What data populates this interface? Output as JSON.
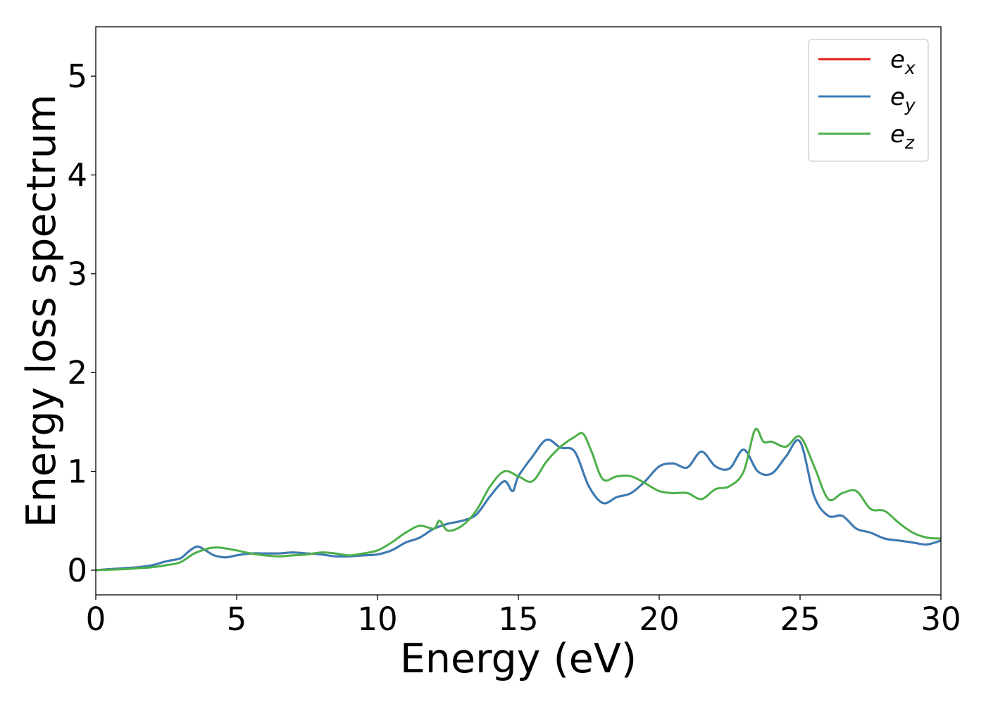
{
  "chart_data": {
    "type": "line",
    "title": "",
    "xlabel": "Energy (eV)",
    "ylabel": "Energy loss spectrum",
    "xlim": [
      0,
      30
    ],
    "ylim": [
      -0.25,
      5.5
    ],
    "xticks": [
      0,
      5,
      10,
      15,
      20,
      25,
      30
    ],
    "yticks": [
      0,
      1,
      2,
      3,
      4,
      5
    ],
    "grid": false,
    "legend_position": "top-right",
    "series": [
      {
        "name": "e",
        "subscript": "x",
        "color": "#e41a1c",
        "note_hidden_under": "e_y",
        "x": [
          0,
          1,
          1.5,
          2,
          2.5,
          3,
          3.3,
          3.6,
          3.9,
          4.2,
          4.6,
          5,
          5.5,
          6,
          6.5,
          7,
          7.5,
          8,
          8.5,
          9,
          9.5,
          10,
          10.5,
          11,
          11.5,
          12,
          12.5,
          13,
          13.5,
          14,
          14.5,
          14.8,
          15,
          15.5,
          16,
          16.5,
          17,
          17.5,
          18,
          18.5,
          19,
          19.5,
          20,
          20.5,
          21,
          21.5,
          22,
          22.5,
          23,
          23.5,
          24,
          24.5,
          25,
          25.5,
          26,
          26.5,
          27,
          27.5,
          28,
          28.5,
          29,
          29.5,
          30
        ],
        "y": [
          0,
          0.02,
          0.03,
          0.05,
          0.09,
          0.12,
          0.19,
          0.24,
          0.2,
          0.15,
          0.13,
          0.15,
          0.17,
          0.17,
          0.17,
          0.18,
          0.17,
          0.16,
          0.14,
          0.14,
          0.15,
          0.16,
          0.2,
          0.28,
          0.33,
          0.42,
          0.47,
          0.5,
          0.56,
          0.75,
          0.9,
          0.8,
          0.95,
          1.15,
          1.32,
          1.24,
          1.2,
          0.85,
          0.68,
          0.74,
          0.78,
          0.9,
          1.05,
          1.08,
          1.04,
          1.2,
          1.05,
          1.03,
          1.22,
          1.0,
          0.98,
          1.15,
          1.3,
          0.75,
          0.55,
          0.55,
          0.42,
          0.38,
          0.32,
          0.3,
          0.28,
          0.26,
          0.3
        ]
      },
      {
        "name": "e",
        "subscript": "y",
        "color": "#377eb8",
        "x": [
          0,
          1,
          1.5,
          2,
          2.5,
          3,
          3.3,
          3.6,
          3.9,
          4.2,
          4.6,
          5,
          5.5,
          6,
          6.5,
          7,
          7.5,
          8,
          8.5,
          9,
          9.5,
          10,
          10.5,
          11,
          11.5,
          12,
          12.5,
          13,
          13.5,
          14,
          14.5,
          14.8,
          15,
          15.5,
          16,
          16.5,
          17,
          17.5,
          18,
          18.5,
          19,
          19.5,
          20,
          20.5,
          21,
          21.5,
          22,
          22.5,
          23,
          23.5,
          24,
          24.5,
          25,
          25.5,
          26,
          26.5,
          27,
          27.5,
          28,
          28.5,
          29,
          29.5,
          30
        ],
        "y": [
          0,
          0.02,
          0.03,
          0.05,
          0.09,
          0.12,
          0.19,
          0.24,
          0.2,
          0.15,
          0.13,
          0.15,
          0.17,
          0.17,
          0.17,
          0.18,
          0.17,
          0.16,
          0.14,
          0.14,
          0.15,
          0.16,
          0.2,
          0.28,
          0.33,
          0.42,
          0.47,
          0.5,
          0.56,
          0.75,
          0.9,
          0.8,
          0.95,
          1.15,
          1.32,
          1.24,
          1.2,
          0.85,
          0.68,
          0.74,
          0.78,
          0.9,
          1.05,
          1.08,
          1.04,
          1.2,
          1.05,
          1.03,
          1.22,
          1.0,
          0.98,
          1.15,
          1.3,
          0.75,
          0.55,
          0.55,
          0.42,
          0.38,
          0.32,
          0.3,
          0.28,
          0.26,
          0.3
        ]
      },
      {
        "name": "e",
        "subscript": "z",
        "color": "#4daf4a",
        "x": [
          0,
          1,
          1.5,
          2,
          2.5,
          3,
          3.5,
          4,
          4.3,
          4.6,
          5,
          5.5,
          6,
          6.5,
          7,
          7.5,
          8,
          8.5,
          9,
          9.5,
          10,
          10.5,
          11,
          11.5,
          12,
          12.2,
          12.5,
          13,
          13.5,
          14,
          14.5,
          15,
          15.5,
          16,
          16.5,
          17,
          17.3,
          17.6,
          18,
          18.5,
          19,
          19.5,
          20,
          20.5,
          21,
          21.5,
          22,
          22.5,
          23,
          23.4,
          23.7,
          24,
          24.5,
          25,
          25.5,
          26,
          26.5,
          27,
          27.5,
          28,
          28.5,
          29,
          29.5,
          30
        ],
        "y": [
          0,
          0.01,
          0.02,
          0.03,
          0.05,
          0.08,
          0.17,
          0.22,
          0.23,
          0.22,
          0.2,
          0.17,
          0.15,
          0.14,
          0.15,
          0.16,
          0.18,
          0.17,
          0.15,
          0.17,
          0.2,
          0.28,
          0.38,
          0.45,
          0.42,
          0.5,
          0.4,
          0.45,
          0.6,
          0.85,
          1.0,
          0.95,
          0.9,
          1.1,
          1.25,
          1.35,
          1.38,
          1.2,
          0.92,
          0.95,
          0.95,
          0.88,
          0.8,
          0.78,
          0.78,
          0.72,
          0.82,
          0.85,
          1.0,
          1.42,
          1.3,
          1.3,
          1.25,
          1.35,
          1.05,
          0.72,
          0.78,
          0.8,
          0.62,
          0.6,
          0.48,
          0.38,
          0.33,
          0.32
        ]
      }
    ]
  }
}
